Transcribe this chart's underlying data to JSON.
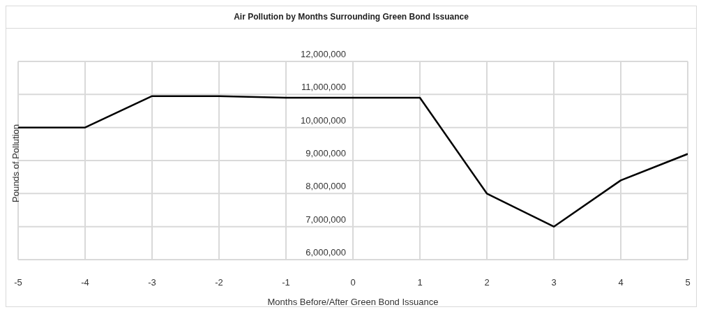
{
  "chart_data": {
    "type": "line",
    "title": "Air Pollution by Months Surrounding Green Bond Issuance",
    "xlabel": "Months Before/After Green Bond Issuance",
    "ylabel": "Pounds of Pollution",
    "x": [
      -5,
      -4,
      -3,
      -2,
      -1,
      0,
      1,
      2,
      3,
      4,
      5
    ],
    "series": [
      {
        "color": "#000000",
        "values": [
          10000000,
          10000000,
          10950000,
          10950000,
          10900000,
          10900000,
          10900000,
          8000000,
          7000000,
          8400000,
          9200000
        ]
      }
    ],
    "xlim": [
      -5,
      5
    ],
    "xticks": [
      -5,
      -4,
      -3,
      -2,
      -1,
      0,
      1,
      2,
      3,
      4,
      5
    ],
    "ylim": [
      6000000,
      12000000
    ],
    "yticks": [
      {
        "value": 6000000,
        "label": "6,000,000"
      },
      {
        "value": 7000000,
        "label": "7,000,000"
      },
      {
        "value": 8000000,
        "label": "8,000,000"
      },
      {
        "value": 9000000,
        "label": "9,000,000"
      },
      {
        "value": 10000000,
        "label": "10,000,000"
      },
      {
        "value": 11000000,
        "label": "11,000,000"
      },
      {
        "value": 12000000,
        "label": "12,000,000"
      }
    ],
    "grid": true,
    "legend": false,
    "marker": "none",
    "line_style": "solid"
  }
}
